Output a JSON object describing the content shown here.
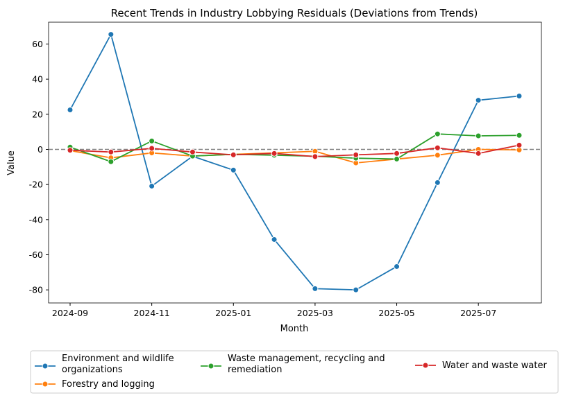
{
  "chart_data": {
    "type": "line",
    "title": "Recent Trends in Industry Lobbying Residuals (Deviations from Trends)",
    "xlabel": "Month",
    "ylabel": "Value",
    "x": [
      "2024-09",
      "2024-10",
      "2024-11",
      "2024-12",
      "2025-01",
      "2025-02",
      "2025-03",
      "2025-04",
      "2025-05",
      "2025-06",
      "2025-07",
      "2025-08"
    ],
    "xticks": [
      "2024-09",
      "2024-11",
      "2025-01",
      "2025-03",
      "2025-05",
      "2025-07"
    ],
    "yticks": [
      60,
      40,
      20,
      0,
      -20,
      -40,
      -60,
      -80
    ],
    "ylim": [
      -87,
      72
    ],
    "grid": false,
    "reference_line": 0,
    "legend_placement": "bottom",
    "series": [
      {
        "name": "Environment and wildlife organizations",
        "color": "#1f77b4",
        "values": [
          22.5,
          65.5,
          -20.9,
          -3.9,
          -11.8,
          -51.3,
          -79.3,
          -80,
          -66.7,
          -18.9,
          28,
          30.4
        ]
      },
      {
        "name": "Forestry and logging",
        "color": "#ff7f0e",
        "values": [
          -0.7,
          -4.8,
          -2,
          -3.8,
          -2.8,
          -2,
          -1.1,
          -7.7,
          -5.5,
          -3.3,
          0,
          -0.3
        ]
      },
      {
        "name": "Waste management, recycling and remediation",
        "color": "#2ca02c",
        "values": [
          1.3,
          -7,
          4.8,
          -3.8,
          -2.8,
          -3.3,
          -3.9,
          -5,
          -5.5,
          8.8,
          7.7,
          8
        ]
      },
      {
        "name": "Water and waste water",
        "color": "#d62728",
        "values": [
          -0.5,
          -1.5,
          0.6,
          -1.5,
          -3.1,
          -2.3,
          -4.1,
          -3.1,
          -2.3,
          0.9,
          -2.3,
          2.4
        ]
      }
    ]
  }
}
